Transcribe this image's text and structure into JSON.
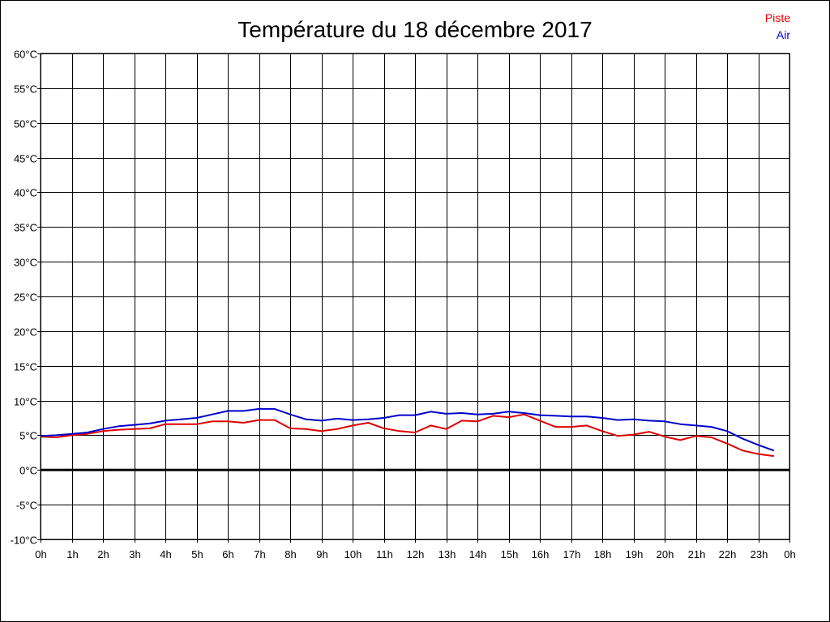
{
  "chart_data": {
    "type": "line",
    "title": "Température du 18 décembre 2017",
    "xlabel": "",
    "ylabel": "",
    "x_tick_labels": [
      "0h",
      "1h",
      "2h",
      "3h",
      "4h",
      "5h",
      "6h",
      "7h",
      "8h",
      "9h",
      "10h",
      "11h",
      "12h",
      "13h",
      "14h",
      "15h",
      "16h",
      "17h",
      "18h",
      "19h",
      "20h",
      "21h",
      "22h",
      "23h",
      "0h"
    ],
    "xlim": [
      0,
      24
    ],
    "y_tick_labels": [
      "60°C",
      "55°C",
      "50°C",
      "45°C",
      "40°C",
      "35°C",
      "30°C",
      "25°C",
      "20°C",
      "15°C",
      "10°C",
      "5°C",
      "0°C",
      "-5°C",
      "-10°C"
    ],
    "ylim": [
      -10,
      60
    ],
    "y_step": 5,
    "grid": true,
    "zero_line": true,
    "legend": "top-right",
    "series": [
      {
        "name": "Piste",
        "color": "#e00000",
        "x": [
          0,
          0.5,
          1,
          1.5,
          2,
          2.5,
          3,
          3.5,
          4,
          4.5,
          5,
          5.5,
          6,
          6.5,
          7,
          7.5,
          8,
          8.5,
          9,
          9.5,
          10,
          10.5,
          11,
          11.5,
          12,
          12.5,
          13,
          13.5,
          14,
          14.5,
          15,
          15.5,
          16,
          16.5,
          17,
          17.5,
          18,
          18.5,
          19,
          19.5,
          20,
          20.5,
          21,
          21.5,
          22,
          22.5,
          23,
          23.5
        ],
        "values": [
          4.8,
          4.7,
          5.0,
          5.2,
          5.6,
          5.8,
          5.9,
          6.0,
          6.6,
          6.6,
          6.6,
          7.0,
          7.0,
          6.8,
          7.2,
          7.2,
          6.0,
          5.9,
          5.6,
          5.9,
          6.4,
          6.8,
          6.0,
          5.6,
          5.4,
          6.4,
          5.9,
          7.1,
          7.0,
          7.8,
          7.6,
          8.0,
          7.1,
          6.2,
          6.2,
          6.4,
          5.6,
          4.9,
          5.1,
          5.5,
          4.8,
          4.3,
          4.9,
          4.7,
          3.8,
          2.8,
          2.3,
          2.0
        ]
      },
      {
        "name": "Air",
        "color": "#0000cc",
        "x": [
          0,
          0.5,
          1,
          1.5,
          2,
          2.5,
          3,
          3.5,
          4,
          4.5,
          5,
          5.5,
          6,
          6.5,
          7,
          7.5,
          8,
          8.5,
          9,
          9.5,
          10,
          10.5,
          11,
          11.5,
          12,
          12.5,
          13,
          13.5,
          14,
          14.5,
          15,
          15.5,
          16,
          16.5,
          17,
          17.5,
          18,
          18.5,
          19,
          19.5,
          20,
          20.5,
          21,
          21.5,
          22,
          22.5,
          23,
          23.5
        ],
        "values": [
          4.9,
          5.0,
          5.2,
          5.4,
          5.9,
          6.3,
          6.5,
          6.7,
          7.1,
          7.3,
          7.5,
          8.0,
          8.5,
          8.5,
          8.8,
          8.8,
          8.0,
          7.3,
          7.1,
          7.4,
          7.2,
          7.3,
          7.5,
          7.9,
          7.9,
          8.4,
          8.1,
          8.2,
          8.0,
          8.1,
          8.4,
          8.2,
          7.9,
          7.8,
          7.7,
          7.7,
          7.5,
          7.2,
          7.3,
          7.1,
          7.0,
          6.6,
          6.4,
          6.2,
          5.6,
          4.5,
          3.6,
          2.8
        ]
      }
    ]
  }
}
